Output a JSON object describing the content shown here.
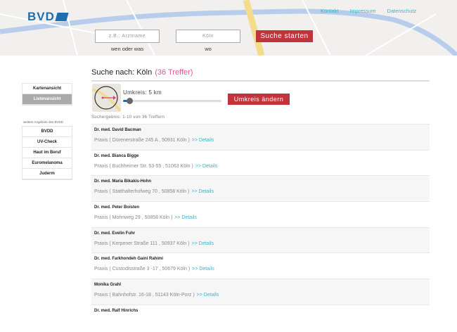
{
  "header": {
    "logo": "BVD",
    "links": [
      "Kontakt",
      "Impressum",
      "Datenschutz"
    ],
    "search": {
      "what_placeholder": "z.B.: Arztname",
      "what_label": "wen oder was",
      "where_value": "Köln",
      "where_label": "wo",
      "button": "Suche starten"
    }
  },
  "sidebar": {
    "views": [
      {
        "label": "Kartenansicht",
        "active": false
      },
      {
        "label": "Listenansicht",
        "active": true
      }
    ],
    "offers_caption": "weitere Angebote des BVDD",
    "offers": [
      "BVDD",
      "UV-Check",
      "Haut im Beruf",
      "Euromelanoma",
      "Juderm"
    ]
  },
  "main": {
    "title": "Suche nach: Köln",
    "hits": "(36 Treffer)",
    "radius_label": "Umkreis: 5 km",
    "radius_km": 5,
    "radius_button": "Umkreis ändern",
    "result_info": "Suchergebnis: 1-10 von 36 Treffern",
    "results": [
      {
        "name": "Dr. med. David Bacman",
        "address": "Praxis ( Dürenerstraße 245 A , 50931 Köln )",
        "details": ">> Details"
      },
      {
        "name": "Dr. med. Bianca Bigge",
        "address": "Praxis ( Buchheimer Str. 53-55 , 51063 Köln )",
        "details": ">> Details"
      },
      {
        "name": "Dr. med. Maria Bikakis-Hohn",
        "address": "Praxis ( Statthalterhofweg 70 , 50858 Köln )",
        "details": ">> Details"
      },
      {
        "name": "Dr. med. Peter Boisten",
        "address": "Praxis ( Mohnweg 29 , 50858 Köln )",
        "details": ">> Details"
      },
      {
        "name": "Dr. med. Evelin Fuhr",
        "address": "Praxis ( Kerpener Straße 111 , 50937 Köln )",
        "details": ">> Details"
      },
      {
        "name": "Dr. med. Farkhondeh Gaini Rahimi",
        "address": "Praxis ( Custodisstraße 3 -17 , 50679 Köln )",
        "details": ">> Details"
      },
      {
        "name": "Monika Grahl",
        "address": "Praxis ( Bahnhofstr. 16-18 , 51143 Köln-Porz )",
        "details": ">> Details"
      },
      {
        "name": "Dr. med. Ralf Hinrichs",
        "address": "",
        "details": ""
      }
    ]
  },
  "colors": {
    "accent": "#c0343c",
    "link": "#3bb3cc",
    "hits": "#e05a8a",
    "brand": "#1e6fb0"
  }
}
